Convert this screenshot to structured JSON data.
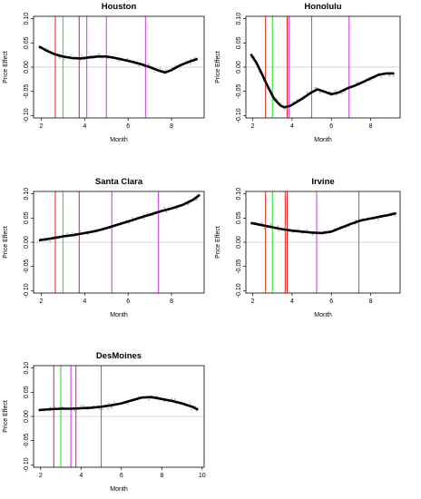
{
  "colors": {
    "red": "#ee1c1c",
    "green": "#22dd22",
    "purple": "#cc33ee",
    "curve": "#000000",
    "points": "#b0b0b0",
    "zero_line": "#c8c8c8",
    "frame": "#000000"
  },
  "chart_data": [
    {
      "type": "line",
      "title": "Houston",
      "xlabel": "Month",
      "ylabel": "Price Effect",
      "xlim": [
        1.65,
        9.5
      ],
      "ylim": [
        -0.105,
        0.105
      ],
      "xticks": [
        2,
        4,
        6,
        8
      ],
      "yticks": [
        -0.1,
        -0.05,
        0.0,
        0.05,
        0.1
      ],
      "vlines": [
        {
          "x": 2.65,
          "color": "red"
        },
        {
          "x": 3.0,
          "color": "green"
        },
        {
          "x": 3.75,
          "color": "red"
        },
        {
          "x": 4.1,
          "color": "purple"
        },
        {
          "x": 5.0,
          "color": "purple"
        },
        {
          "x": 6.8,
          "color": "purple"
        }
      ],
      "series": [
        {
          "x": [
            1.9,
            2.2,
            2.6,
            3.0,
            3.4,
            3.8,
            4.2,
            4.6,
            5.0,
            5.4,
            5.8,
            6.2,
            6.6,
            7.0,
            7.4,
            7.7,
            8.0,
            8.4,
            8.8,
            9.2
          ],
          "y": [
            0.043,
            0.035,
            0.027,
            0.022,
            0.019,
            0.018,
            0.02,
            0.022,
            0.022,
            0.019,
            0.015,
            0.011,
            0.006,
            0.0,
            -0.007,
            -0.011,
            -0.006,
            0.004,
            0.011,
            0.017
          ]
        }
      ]
    },
    {
      "type": "line",
      "title": "Honolulu",
      "xlabel": "Month",
      "ylabel": "Price Effect",
      "xlim": [
        1.65,
        9.5
      ],
      "ylim": [
        -0.105,
        0.105
      ],
      "xticks": [
        2,
        4,
        6,
        8
      ],
      "yticks": [
        -0.1,
        -0.05,
        0.0,
        0.05,
        0.1
      ],
      "vlines": [
        {
          "x": 2.65,
          "color": "red"
        },
        {
          "x": 3.0,
          "color": "green"
        },
        {
          "x": 3.75,
          "color": "red"
        },
        {
          "x": 3.85,
          "color": "purple"
        },
        {
          "x": 5.0,
          "color": "purple"
        },
        {
          "x": 6.9,
          "color": "purple"
        }
      ],
      "series": [
        {
          "x": [
            1.9,
            2.2,
            2.5,
            2.8,
            3.1,
            3.4,
            3.6,
            3.9,
            4.2,
            4.6,
            5.0,
            5.3,
            5.6,
            6.0,
            6.4,
            6.8,
            7.2,
            7.6,
            8.0,
            8.4,
            8.8,
            9.2
          ],
          "y": [
            0.027,
            0.008,
            -0.017,
            -0.043,
            -0.066,
            -0.079,
            -0.083,
            -0.08,
            -0.073,
            -0.063,
            -0.052,
            -0.046,
            -0.05,
            -0.056,
            -0.052,
            -0.044,
            -0.038,
            -0.031,
            -0.023,
            -0.016,
            -0.013,
            -0.013
          ]
        }
      ]
    },
    {
      "type": "line",
      "title": "Santa Clara",
      "xlabel": "Month",
      "ylabel": "Price Effect",
      "xlim": [
        1.65,
        9.5
      ],
      "ylim": [
        -0.105,
        0.105
      ],
      "xticks": [
        2,
        4,
        6,
        8
      ],
      "yticks": [
        -0.1,
        -0.05,
        0.0,
        0.05,
        0.1
      ],
      "vlines": [
        {
          "x": 2.65,
          "color": "red"
        },
        {
          "x": 3.0,
          "color": "green"
        },
        {
          "x": 3.75,
          "color": "red"
        },
        {
          "x": 5.25,
          "color": "purple"
        },
        {
          "x": 7.4,
          "color": "purple"
        }
      ],
      "series": [
        {
          "x": [
            1.9,
            2.5,
            3.0,
            3.5,
            4.0,
            4.5,
            5.0,
            5.5,
            6.0,
            6.5,
            7.0,
            7.5,
            8.0,
            8.5,
            9.0,
            9.3
          ],
          "y": [
            0.004,
            0.008,
            0.012,
            0.015,
            0.019,
            0.023,
            0.029,
            0.036,
            0.043,
            0.05,
            0.057,
            0.064,
            0.07,
            0.077,
            0.088,
            0.098
          ]
        }
      ]
    },
    {
      "type": "line",
      "title": "Irvine",
      "xlabel": "Month",
      "ylabel": "Price Effect",
      "xlim": [
        1.65,
        9.5
      ],
      "ylim": [
        -0.105,
        0.105
      ],
      "xticks": [
        2,
        4,
        6,
        8
      ],
      "yticks": [
        -0.1,
        -0.05,
        0.0,
        0.05,
        0.1
      ],
      "vlines": [
        {
          "x": 2.65,
          "color": "red"
        },
        {
          "x": 3.0,
          "color": "green"
        },
        {
          "x": 3.65,
          "color": "red"
        },
        {
          "x": 3.75,
          "color": "red"
        },
        {
          "x": 5.25,
          "color": "purple"
        },
        {
          "x": 7.4,
          "color": "purple"
        }
      ],
      "series": [
        {
          "x": [
            1.9,
            2.5,
            3.0,
            3.5,
            4.0,
            4.5,
            5.0,
            5.5,
            6.0,
            6.5,
            7.0,
            7.5,
            8.0,
            8.5,
            9.0,
            9.3
          ],
          "y": [
            0.04,
            0.035,
            0.031,
            0.027,
            0.024,
            0.022,
            0.02,
            0.019,
            0.022,
            0.03,
            0.038,
            0.045,
            0.049,
            0.053,
            0.057,
            0.06
          ]
        }
      ]
    },
    {
      "type": "line",
      "title": "DesMoines",
      "xlabel": "Month",
      "ylabel": "Price Effect",
      "xlim": [
        1.65,
        10.1
      ],
      "ylim": [
        -0.105,
        0.105
      ],
      "xticks": [
        2,
        4,
        6,
        8,
        10
      ],
      "yticks": [
        -0.1,
        -0.05,
        0.0,
        0.05,
        0.1
      ],
      "vlines": [
        {
          "x": 2.65,
          "color": "red"
        },
        {
          "x": 3.0,
          "color": "green"
        },
        {
          "x": 3.5,
          "color": "purple"
        },
        {
          "x": 3.75,
          "color": "red"
        },
        {
          "x": 5.0,
          "color": "purple"
        }
      ],
      "series": [
        {
          "x": [
            1.9,
            2.5,
            3.0,
            3.5,
            4.0,
            4.5,
            5.0,
            5.5,
            6.0,
            6.5,
            7.0,
            7.5,
            8.0,
            8.5,
            9.0,
            9.5,
            9.8
          ],
          "y": [
            0.013,
            0.015,
            0.016,
            0.016,
            0.017,
            0.018,
            0.02,
            0.023,
            0.027,
            0.033,
            0.039,
            0.04,
            0.036,
            0.032,
            0.027,
            0.02,
            0.014
          ]
        }
      ]
    }
  ]
}
